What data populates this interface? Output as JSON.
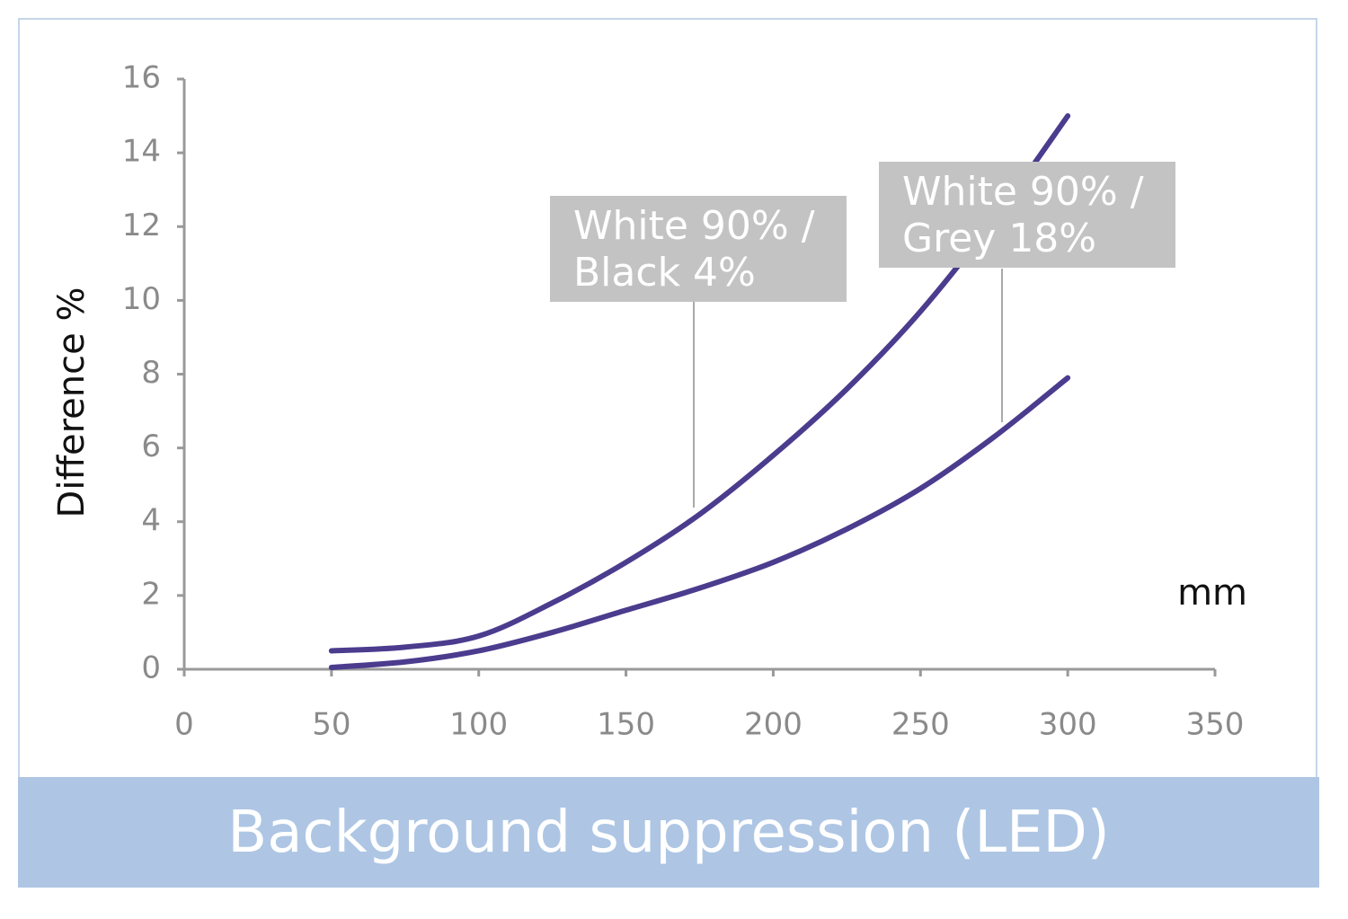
{
  "chart_data": {
    "type": "line",
    "title": "Background suppression (LED)",
    "x_label": "mm",
    "y_label": "Difference %",
    "x": [
      50,
      75,
      100,
      125,
      150,
      175,
      200,
      225,
      250,
      275,
      300
    ],
    "series": [
      {
        "name": "White 90% / Black 4%",
        "color": "#4b3c8e",
        "values": [
          0.5,
          0.6,
          0.9,
          1.8,
          2.9,
          4.2,
          5.8,
          7.6,
          9.7,
          12.2,
          15
        ]
      },
      {
        "name": "White 90% / Grey 18%",
        "color": "#4b3c8e",
        "values": [
          0.05,
          0.2,
          0.5,
          1.0,
          1.6,
          2.2,
          2.9,
          3.8,
          4.9,
          6.3,
          7.9
        ]
      }
    ],
    "xlim": [
      0,
      350
    ],
    "xticks": [
      0,
      50,
      100,
      150,
      200,
      250,
      300,
      350
    ],
    "ylim": [
      0,
      16
    ],
    "yticks": [
      0,
      2,
      4,
      6,
      8,
      10,
      12,
      14,
      16
    ],
    "grid": false
  }
}
